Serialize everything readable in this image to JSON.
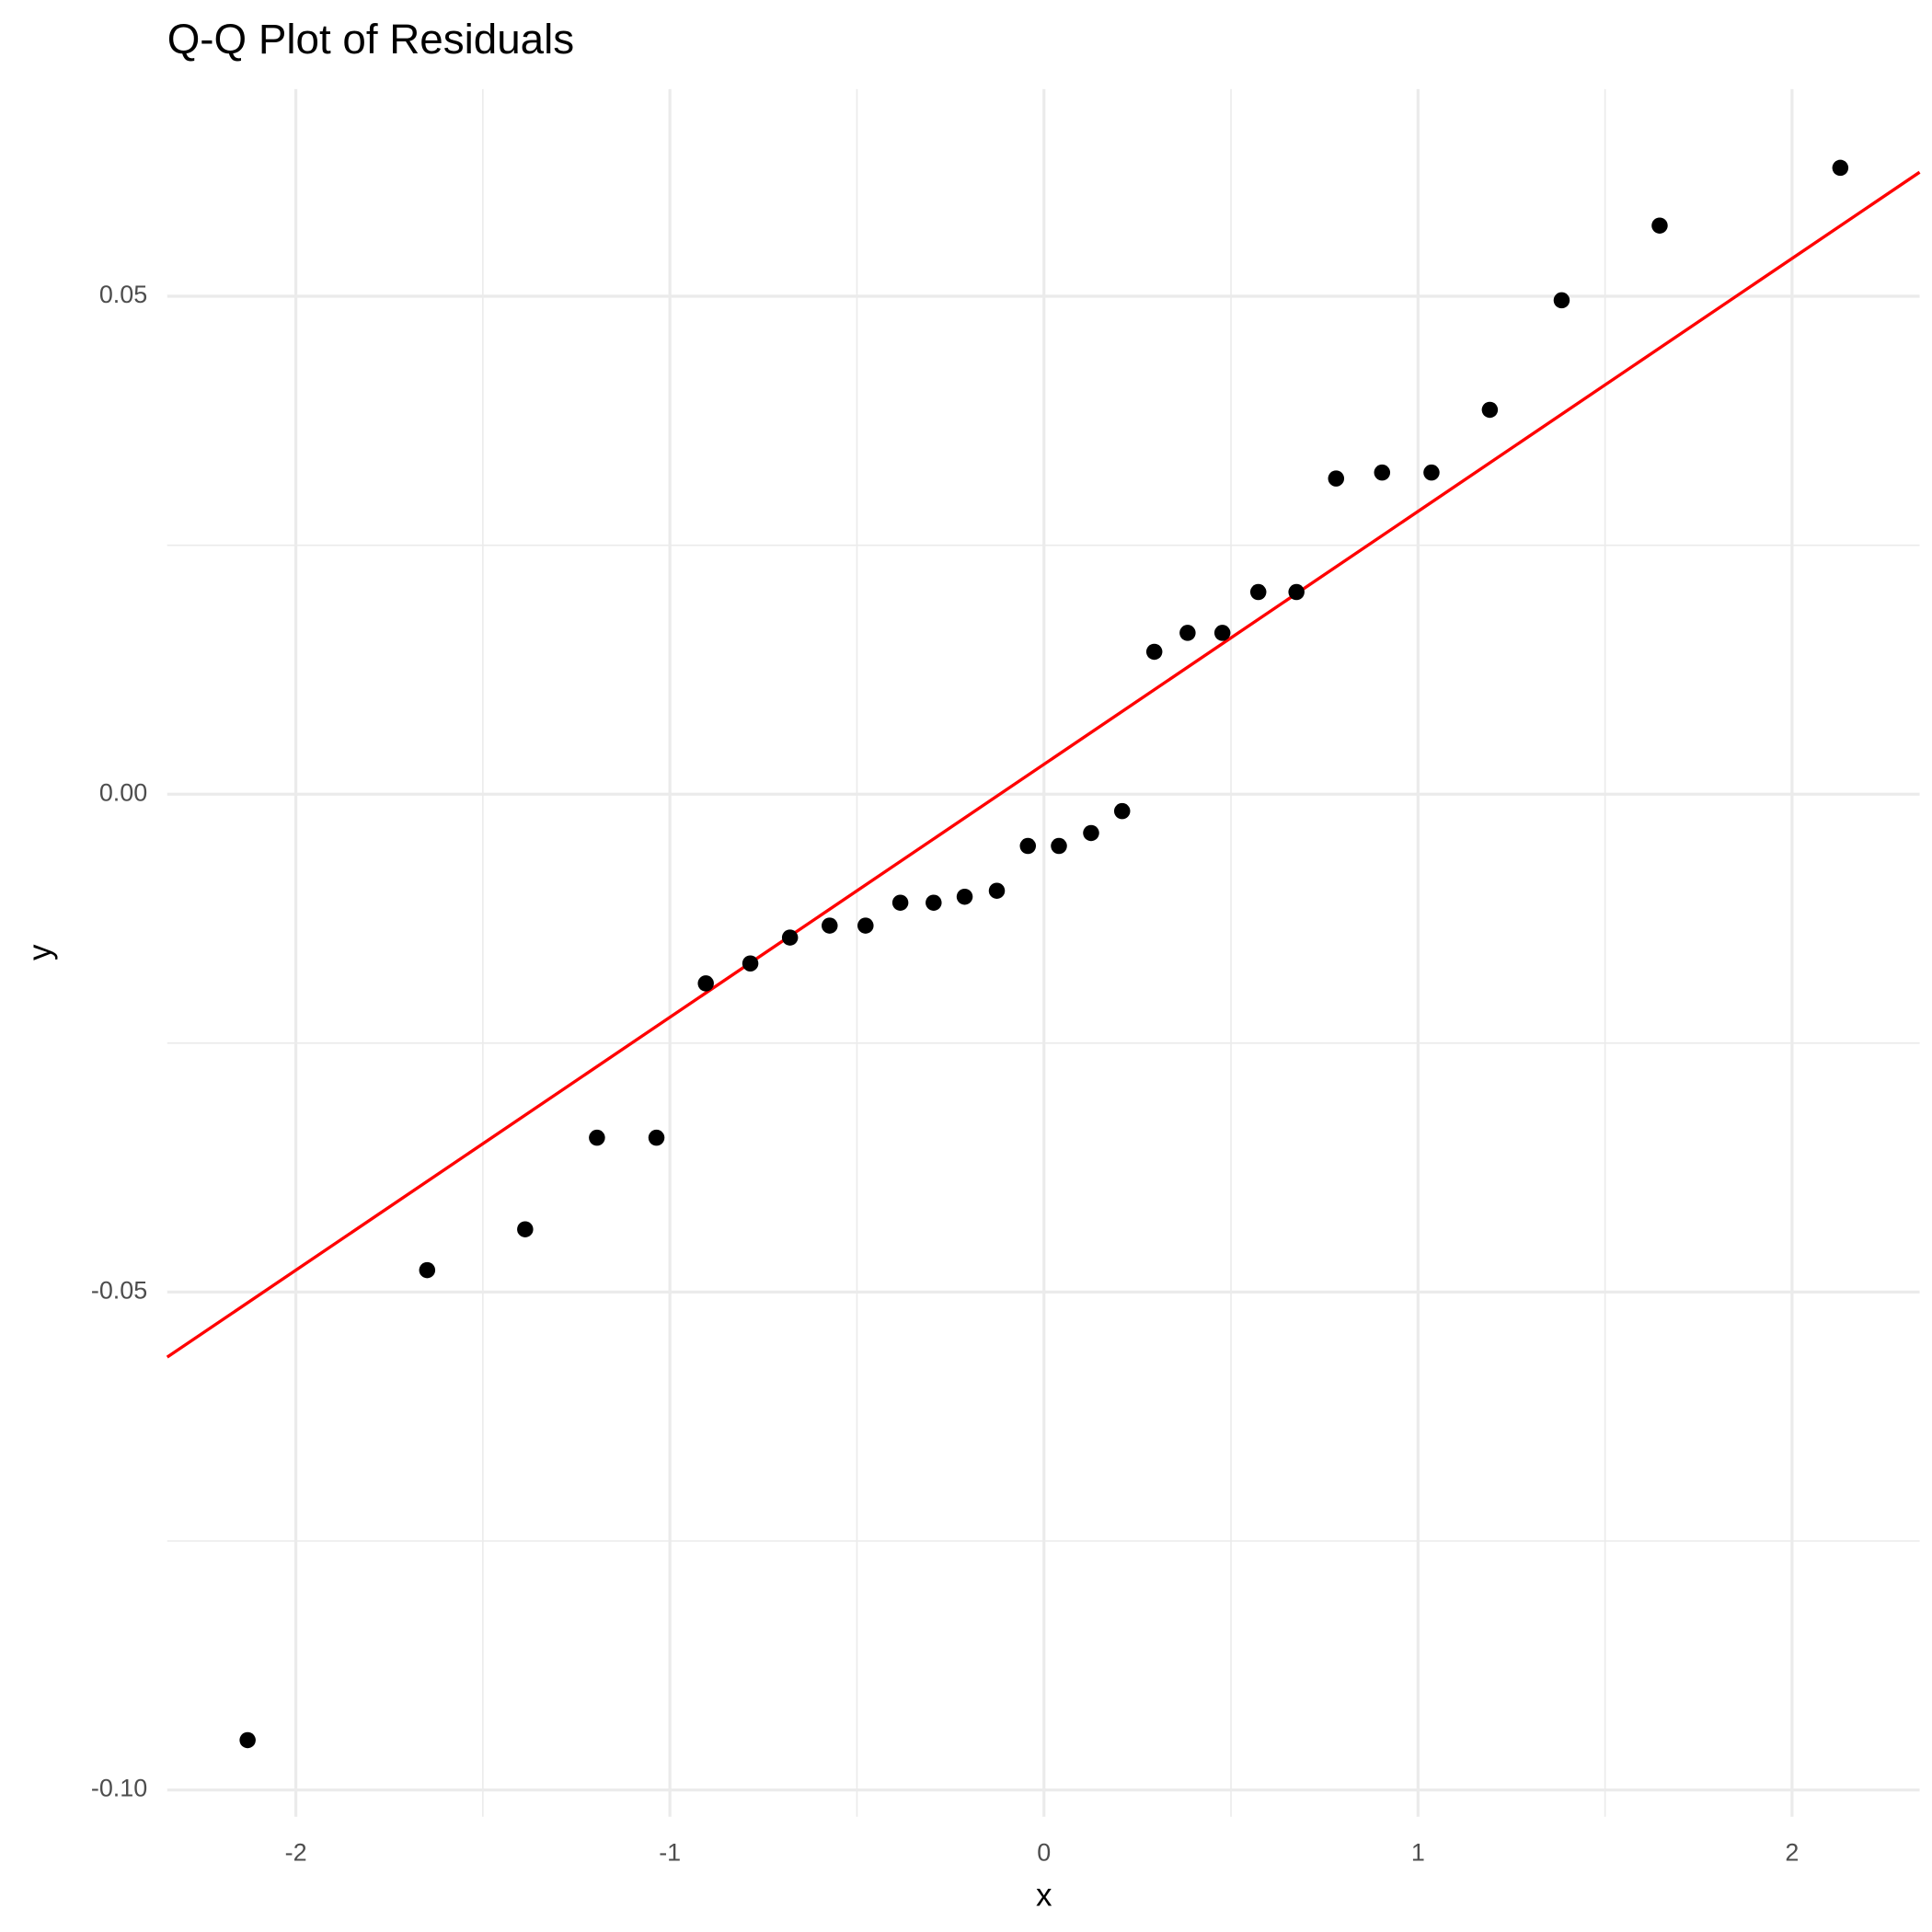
{
  "chart_data": {
    "type": "scatter",
    "title": "Q-Q Plot of Residuals",
    "x_label": "x",
    "y_label": "y",
    "x": [
      -2.129,
      -1.649,
      -1.387,
      -1.195,
      -1.036,
      -0.904,
      -0.785,
      -0.679,
      -0.573,
      -0.477,
      -0.384,
      -0.295,
      -0.212,
      -0.126,
      -0.043,
      0.04,
      0.126,
      0.209,
      0.295,
      0.384,
      0.477,
      0.573,
      0.675,
      0.781,
      0.904,
      1.036,
      1.192,
      1.384,
      1.646,
      2.129
    ],
    "values": [
      -0.095,
      -0.0478,
      -0.0437,
      -0.0345,
      -0.0345,
      -0.019,
      -0.017,
      -0.0144,
      -0.0132,
      -0.0132,
      -0.0109,
      -0.0109,
      -0.0103,
      -0.0097,
      -0.0052,
      -0.0052,
      -0.0039,
      -0.0017,
      0.0143,
      0.0162,
      0.0162,
      0.0203,
      0.0203,
      0.0317,
      0.0323,
      0.0323,
      0.0386,
      0.0496,
      0.0571,
      0.0629
    ],
    "color": "#000000",
    "reference_line": {
      "slope": 0.0254,
      "intercept": 0.003,
      "color": "#ff0000"
    },
    "xlim": [
      -2.344,
      2.341
    ],
    "ylim": [
      -0.1027,
      0.0708
    ],
    "xticks": [
      -2,
      -1,
      0,
      1,
      2
    ],
    "yticks": [
      {
        "value": -0.1,
        "label": "-0.10"
      },
      {
        "value": -0.05,
        "label": "-0.05"
      },
      {
        "value": 0,
        "label": "0.00"
      },
      {
        "value": 0.05,
        "label": "0.05"
      }
    ],
    "grid": true
  }
}
